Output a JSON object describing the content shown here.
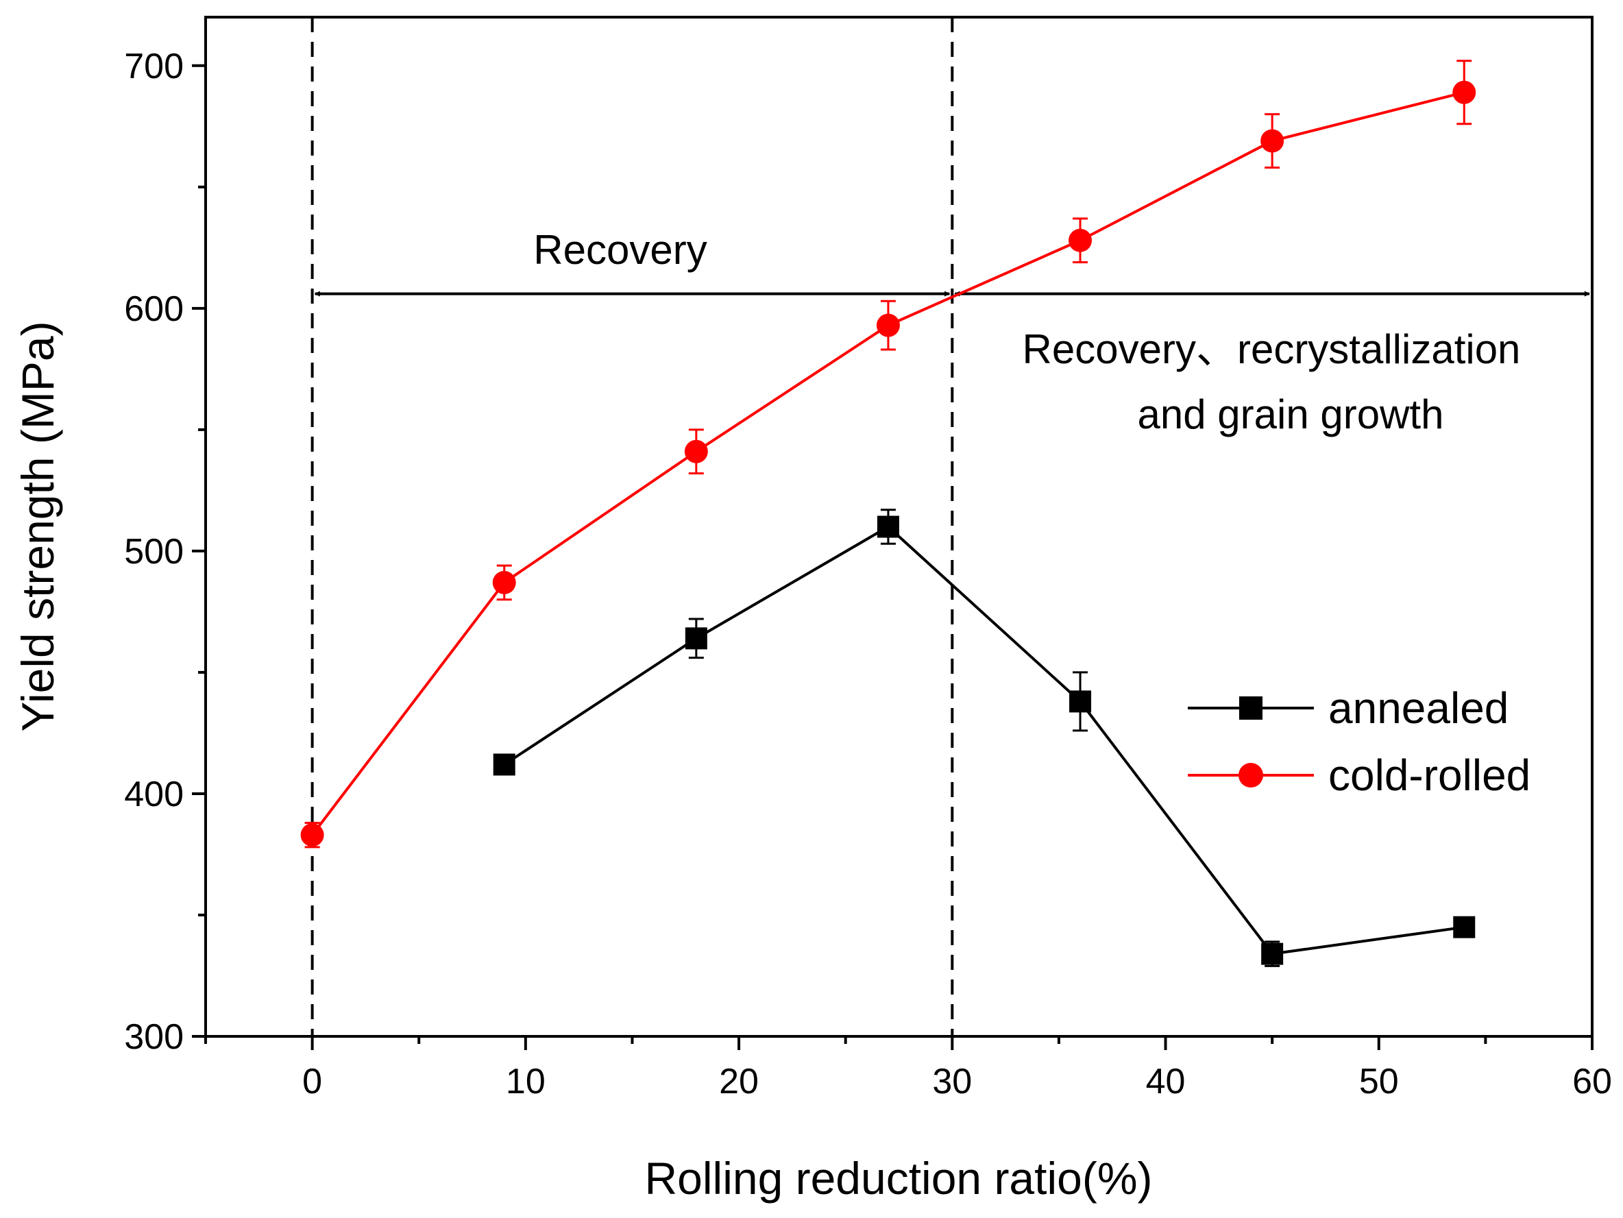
{
  "chart_data": {
    "type": "line",
    "title": "",
    "xlabel": "Rolling reduction ratio(%)",
    "ylabel": "Yield strength (MPa)",
    "xlim": [
      -5,
      60
    ],
    "ylim": [
      300,
      720
    ],
    "x_ticks": [
      0,
      10,
      20,
      30,
      40,
      50,
      60
    ],
    "x_tick_labels": [
      "0",
      "10",
      "20",
      "30",
      "40",
      "50",
      "60"
    ],
    "x_minor_ticks": [
      -5,
      5,
      15,
      25,
      35,
      45,
      55
    ],
    "y_ticks": [
      300,
      400,
      500,
      600,
      700
    ],
    "y_tick_labels": [
      "300",
      "400",
      "500",
      "600",
      "700"
    ],
    "y_minor_ticks": [
      350,
      450,
      550,
      650
    ],
    "grid": false,
    "legend_position": "right",
    "series": [
      {
        "name": "annealed",
        "marker": "square",
        "color": "#000000",
        "x": [
          9,
          18,
          27,
          36,
          45,
          54
        ],
        "y": [
          412,
          464,
          510,
          438,
          334,
          345
        ],
        "err": [
          4,
          8,
          7,
          12,
          5,
          3
        ]
      },
      {
        "name": "cold-rolled",
        "marker": "circle",
        "color": "#ff0000",
        "x": [
          0,
          9,
          18,
          27,
          36,
          45,
          54
        ],
        "y": [
          383,
          487,
          541,
          593,
          628,
          669,
          689
        ],
        "err": [
          5,
          7,
          9,
          10,
          9,
          11,
          13
        ]
      }
    ],
    "reference_lines": [
      {
        "orientation": "vertical",
        "x": 0,
        "style": "dashed"
      },
      {
        "orientation": "vertical",
        "x": 30,
        "style": "dashed"
      }
    ],
    "annotations": [
      {
        "text": "Recovery",
        "x": 14.5,
        "y": 626
      },
      {
        "text": "Recovery、recrystallization",
        "x": 44.5,
        "y": 583
      },
      {
        "text": "and grain growth",
        "x": 45,
        "y": 555
      }
    ],
    "arrows": [
      {
        "from_x": 0,
        "to_x": 30,
        "y": 606,
        "double_headed": true
      },
      {
        "from_x": 30,
        "to_x": 60,
        "y": 606,
        "double_headed": true
      }
    ]
  }
}
